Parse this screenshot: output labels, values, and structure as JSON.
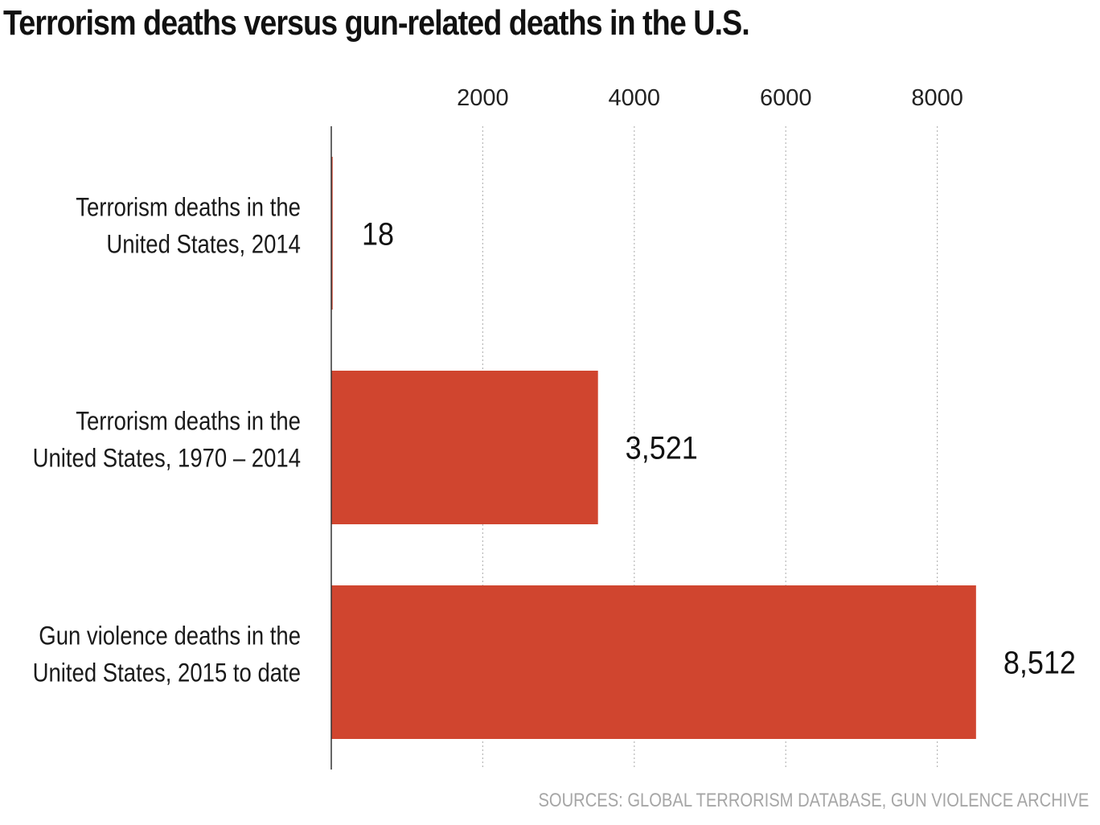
{
  "title": "Terrorism deaths versus gun-related deaths in the U.S.",
  "source": "SOURCES: GLOBAL TERRORISM DATABASE, GUN VIOLENCE ARCHIVE",
  "colors": {
    "bar": "#d0452f",
    "grid": "#b8b8b8",
    "axis": "#333333"
  },
  "chart_data": {
    "type": "bar",
    "orientation": "horizontal",
    "title": "Terrorism deaths versus gun-related deaths in the U.S.",
    "xlabel": "",
    "ylabel": "",
    "categories": [
      [
        "Terrorism deaths in the",
        "United States, 2014"
      ],
      [
        "Terrorism deaths in the",
        "United States, 1970 – 2014"
      ],
      [
        "Gun violence deaths in the",
        "United States, 2015 to date"
      ]
    ],
    "values": [
      18,
      3521,
      8512
    ],
    "value_labels": [
      "18",
      "3,521",
      "8,512"
    ],
    "xticks": [
      2000,
      4000,
      6000,
      8000
    ],
    "xtick_labels": [
      "2000",
      "4000",
      "6000",
      "8000"
    ],
    "xlim": [
      0,
      9000
    ],
    "grid": true,
    "grid_style": "dotted",
    "tick_position": "top",
    "legend": "none",
    "source": "SOURCES: GLOBAL TERRORISM DATABASE, GUN VIOLENCE ARCHIVE"
  }
}
